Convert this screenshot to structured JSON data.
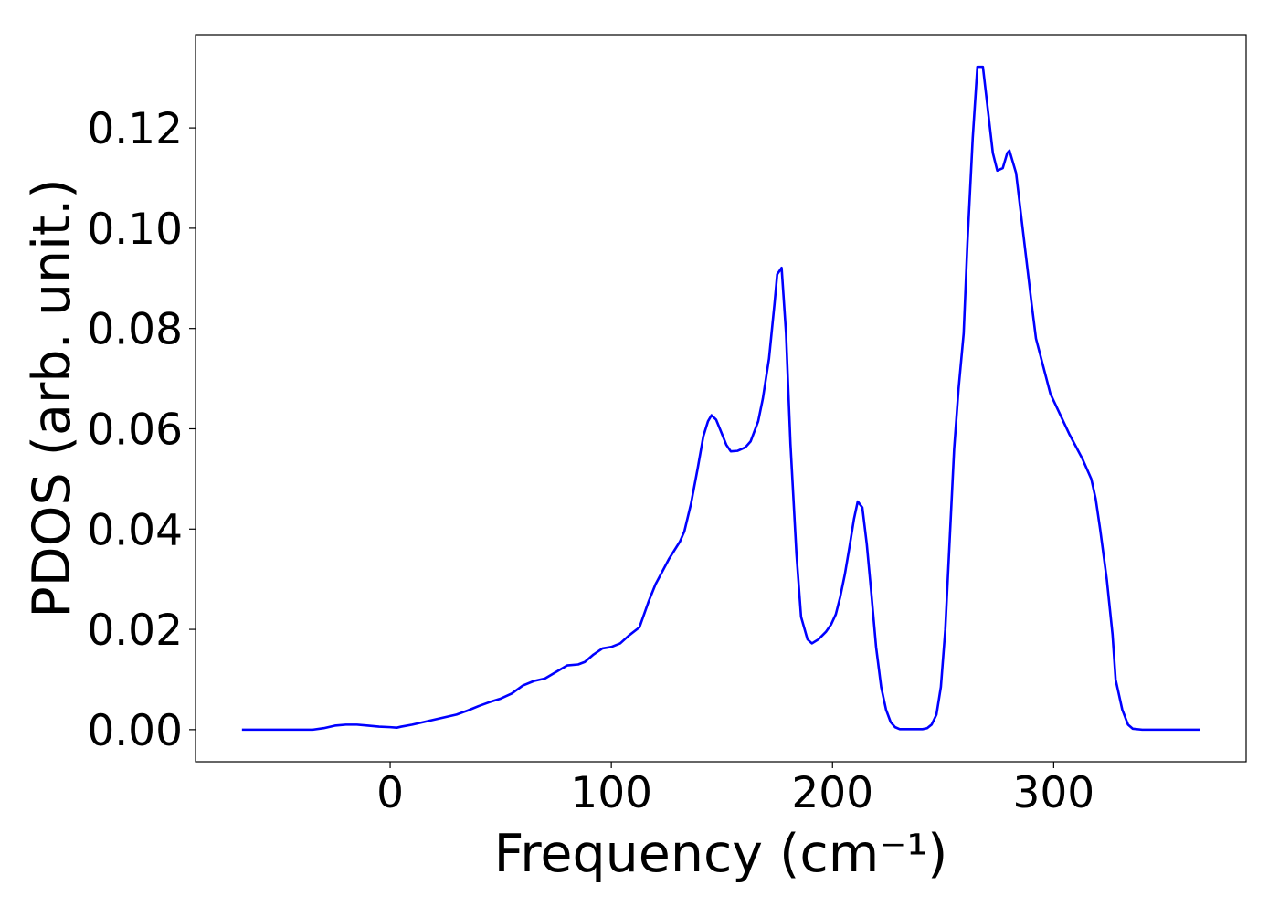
{
  "chart_data": {
    "type": "line",
    "xlabel": "Frequency (cm⁻¹)",
    "ylabel": "PDOS (arb. unit.)",
    "xlim": [
      -88,
      387
    ],
    "ylim": [
      -0.0064,
      0.1386
    ],
    "xticks": [
      0,
      100,
      200,
      300
    ],
    "yticks": [
      {
        "value": 0,
        "label": "0.00"
      },
      {
        "value": 0.02,
        "label": "0.02"
      },
      {
        "value": 0.04,
        "label": "0.04"
      },
      {
        "value": 0.06,
        "label": "0.06"
      },
      {
        "value": 0.08,
        "label": "0.08"
      },
      {
        "value": 0.1,
        "label": "0.10"
      },
      {
        "value": 0.12,
        "label": "0.12"
      }
    ],
    "x": [
      -67,
      -35,
      -30,
      -25,
      -20,
      -15,
      -10,
      -5,
      0,
      3,
      5,
      10,
      15,
      20,
      25,
      30,
      35,
      40,
      45,
      50,
      55,
      60,
      65,
      70,
      75,
      80,
      85,
      88,
      92,
      96,
      100,
      104,
      108,
      112.7,
      116.8,
      120,
      126,
      131,
      133,
      136,
      139,
      141.6,
      143.7,
      145.3,
      147.4,
      150,
      152,
      154,
      157,
      160.6,
      163,
      166.4,
      168.5,
      171.3,
      173.8,
      175,
      177,
      179,
      181,
      183.7,
      185.8,
      188.7,
      190.7,
      193.6,
      197,
      199.4,
      201.5,
      203.5,
      205.6,
      207.7,
      209.7,
      211.4,
      213.5,
      215.5,
      217.6,
      219.7,
      222,
      224.2,
      226.3,
      228.3,
      230.4,
      240.7,
      242.8,
      244.8,
      247,
      249,
      251,
      253,
      255,
      257,
      259.3,
      261,
      263.4,
      265.5,
      268,
      272.5,
      274.5,
      277,
      279,
      280,
      283,
      290,
      292,
      298.5,
      307,
      313,
      317,
      319,
      321,
      324,
      326.6,
      328,
      331,
      333.6,
      335.7,
      340,
      366
    ],
    "series": [
      {
        "color": "#0000ff",
        "values": [
          0,
          0,
          0.0003,
          0.0008,
          0.001,
          0.001,
          0.0008,
          0.0006,
          0.0005,
          0.0004,
          0.0006,
          0.001,
          0.0015,
          0.002,
          0.0025,
          0.003,
          0.0038,
          0.0047,
          0.0055,
          0.0062,
          0.0072,
          0.0088,
          0.0097,
          0.0102,
          0.0115,
          0.0128,
          0.013,
          0.0135,
          0.015,
          0.0162,
          0.0165,
          0.0172,
          0.0188,
          0.0204,
          0.0255,
          0.029,
          0.034,
          0.0375,
          0.0395,
          0.045,
          0.052,
          0.0585,
          0.0615,
          0.0627,
          0.0618,
          0.059,
          0.0568,
          0.0555,
          0.0556,
          0.0563,
          0.0575,
          0.0615,
          0.066,
          0.074,
          0.085,
          0.0908,
          0.0921,
          0.079,
          0.057,
          0.035,
          0.0225,
          0.018,
          0.0172,
          0.018,
          0.0195,
          0.021,
          0.023,
          0.0265,
          0.031,
          0.0365,
          0.042,
          0.0455,
          0.0443,
          0.037,
          0.027,
          0.0165,
          0.0085,
          0.004,
          0.0015,
          0.0005,
          0.0001,
          0.0001,
          0.0003,
          0.001,
          0.003,
          0.0085,
          0.02,
          0.038,
          0.056,
          0.068,
          0.079,
          0.097,
          0.118,
          0.1322,
          0.1322,
          0.115,
          0.1115,
          0.112,
          0.115,
          0.1155,
          0.111,
          0.085,
          0.078,
          0.067,
          0.059,
          0.054,
          0.05,
          0.046,
          0.04,
          0.03,
          0.019,
          0.01,
          0.004,
          0.001,
          0.0002,
          0,
          0
        ]
      }
    ]
  }
}
